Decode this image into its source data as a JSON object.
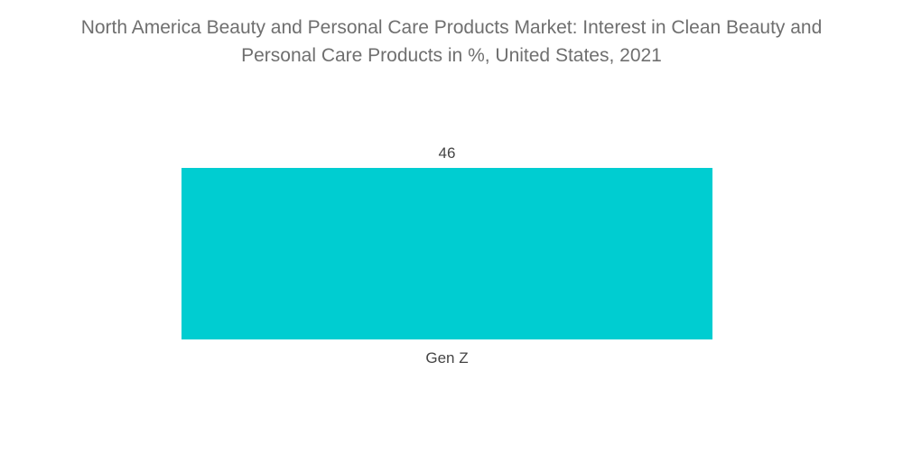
{
  "chart_data": {
    "type": "bar",
    "title_lines": [
      "North America Beauty and Personal Care Products Market: Interest in Clean Beauty and",
      "Personal Care Products in %, United States, 2021"
    ],
    "categories": [
      "Gen Z"
    ],
    "values": [
      46
    ],
    "data_labels": [
      "46"
    ],
    "xlabel": "",
    "ylabel": "",
    "ylim": [
      0,
      46
    ],
    "grid": false,
    "legend": "none",
    "colors": {
      "bar": "#00cdd1",
      "title_text": "#6f6f6f",
      "label_text": "#444444"
    }
  }
}
